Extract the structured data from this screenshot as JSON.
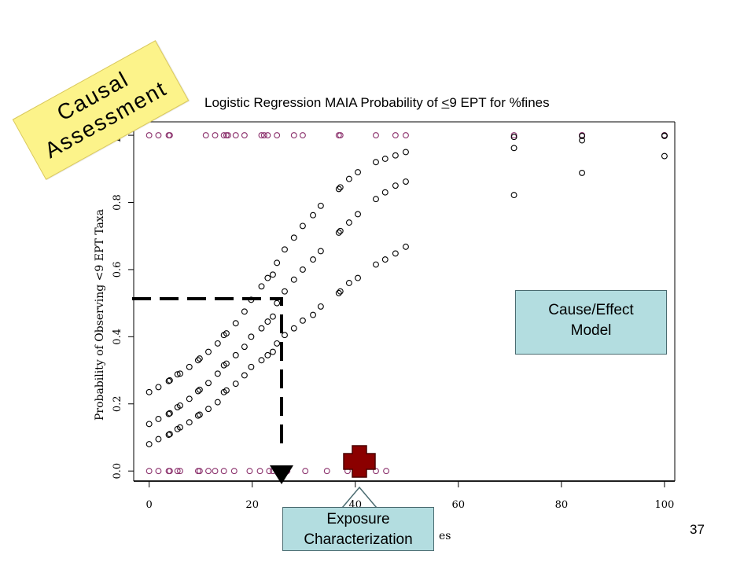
{
  "chart_data": {
    "type": "scatter",
    "title": "Logistic Regression MAIA Probability of <9 EPT for %fines",
    "title_parts": [
      "Logistic Regression MAIA Probability of ",
      "<",
      "9 EPT for %fines"
    ],
    "ylabel": "Probability of Observing <9 EPT Taxa",
    "xlabel": "es",
    "xlim": [
      -3,
      102
    ],
    "ylim": [
      -0.03,
      1.04
    ],
    "x_ticks": [
      0,
      20,
      40,
      60,
      80,
      100
    ],
    "x_tick_labels": [
      "0",
      "20",
      "40",
      "60",
      "80",
      "100"
    ],
    "y_ticks": [
      0.0,
      0.2,
      0.4,
      0.6,
      0.8,
      1.0
    ],
    "y_tick_labels": [
      "0.0",
      "0.2",
      "0.4",
      "0.6",
      "0.8",
      "1.0"
    ],
    "series": [
      {
        "color": "#8a2f6b",
        "x": [
          0,
          1.8,
          3.8,
          4,
          11,
          12.8,
          14.5,
          15,
          15.3,
          16.8,
          18.5,
          21.8,
          22.3,
          23,
          24.8,
          28.1,
          29.8,
          36.8,
          37.1,
          44,
          47.8,
          49.8,
          70.8,
          84,
          84,
          100,
          100,
          0,
          1.8,
          3.8,
          4,
          5.5,
          6,
          9.5,
          9.8,
          11.5,
          12.8,
          14.5,
          16.5,
          19.5,
          21.5,
          23.3,
          24,
          25.5,
          26.8,
          30.3,
          34.5,
          38.5,
          41.5,
          44,
          46
        ],
        "y": [
          1,
          1,
          1,
          1,
          1,
          1,
          1,
          1,
          1,
          1,
          1,
          1,
          1,
          1,
          1,
          1,
          1,
          1,
          1,
          1,
          1,
          1,
          1,
          1,
          1,
          1,
          1,
          0,
          0,
          0,
          0,
          0,
          0,
          0,
          0,
          0,
          0,
          0,
          0,
          0,
          0,
          0,
          0,
          0,
          0,
          0,
          0,
          0,
          0,
          0,
          0
        ]
      },
      {
        "color": "#000000",
        "x": [
          0,
          1.8,
          3.8,
          4,
          5.5,
          6,
          7.8,
          9.5,
          9.8,
          11.5,
          13.3,
          14.5,
          15,
          16.8,
          18.5,
          19.8,
          21.8,
          23,
          24,
          24.8,
          26.3,
          28.1,
          29.8,
          31.8,
          33.3,
          36.8,
          37.1,
          38.8,
          40.5,
          44,
          45.8,
          47.8,
          49.8,
          70.8,
          84,
          100,
          0,
          1.8,
          3.8,
          4,
          5.5,
          6,
          7.8,
          9.5,
          9.8,
          11.5,
          13.3,
          14.5,
          15,
          16.8,
          18.5,
          19.8,
          21.8,
          23,
          24,
          24.8,
          26.3,
          28.1,
          29.8,
          31.8,
          33.3,
          36.8,
          37.1,
          38.8,
          40.5,
          44,
          45.8,
          47.8,
          49.8,
          70.8,
          84,
          100,
          0,
          1.8,
          3.8,
          4,
          5.5,
          6,
          7.8,
          9.5,
          9.8,
          11.5,
          13.3,
          14.5,
          15,
          16.8,
          18.5,
          19.8,
          21.8,
          23,
          24,
          24.8,
          26.3,
          28.1,
          29.8,
          31.8,
          33.3,
          36.8,
          37.1,
          38.8,
          40.5,
          44,
          45.8,
          47.8,
          49.8,
          70.8,
          84,
          100
        ],
        "y": [
          0.235,
          0.25,
          0.268,
          0.27,
          0.288,
          0.29,
          0.31,
          0.33,
          0.335,
          0.355,
          0.38,
          0.405,
          0.41,
          0.44,
          0.475,
          0.51,
          0.55,
          0.575,
          0.585,
          0.62,
          0.66,
          0.695,
          0.73,
          0.762,
          0.79,
          0.84,
          0.845,
          0.87,
          0.89,
          0.92,
          0.93,
          0.94,
          0.95,
          0.995,
          0.998,
          0.999,
          0.14,
          0.155,
          0.17,
          0.172,
          0.19,
          0.195,
          0.215,
          0.238,
          0.242,
          0.262,
          0.29,
          0.315,
          0.32,
          0.345,
          0.37,
          0.4,
          0.425,
          0.445,
          0.46,
          0.5,
          0.535,
          0.57,
          0.6,
          0.63,
          0.655,
          0.71,
          0.715,
          0.74,
          0.765,
          0.81,
          0.83,
          0.85,
          0.862,
          0.962,
          0.985,
          0.998,
          0.08,
          0.095,
          0.108,
          0.11,
          0.125,
          0.13,
          0.145,
          0.165,
          0.168,
          0.185,
          0.205,
          0.235,
          0.24,
          0.26,
          0.285,
          0.31,
          0.33,
          0.345,
          0.355,
          0.38,
          0.405,
          0.425,
          0.448,
          0.465,
          0.49,
          0.53,
          0.535,
          0.56,
          0.575,
          0.615,
          0.63,
          0.648,
          0.668,
          0.822,
          0.888,
          0.938
        ]
      }
    ],
    "annotation_point": {
      "x": 24.8,
      "y": 0.5
    }
  },
  "stamp": {
    "lines": [
      "Causal",
      "Assessment"
    ]
  },
  "cause_box": {
    "lines": [
      "Cause/Effect",
      "Model"
    ]
  },
  "exposure_box": {
    "lines": [
      "Exposure",
      "Characterization"
    ]
  },
  "page_number": "37",
  "colors": {
    "stamp_fill": "#fcf38a",
    "box_fill": "#b3dde0",
    "cross_fill": "#8b0000",
    "magenta_points": "#8a2f6b"
  }
}
